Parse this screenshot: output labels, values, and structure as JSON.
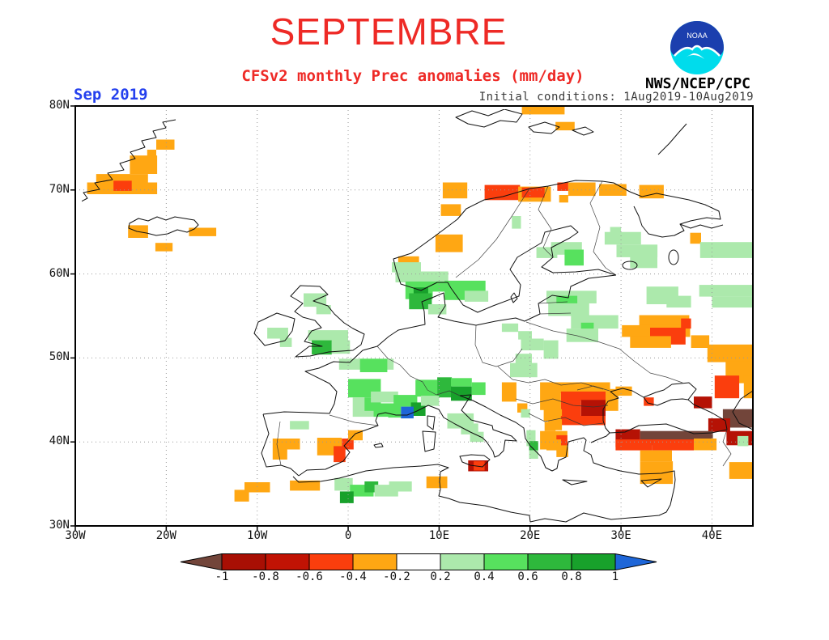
{
  "header": {
    "title": "SEPTEMBRE",
    "subtitle": "CFSv2 monthly Prec anomalies (mm/day)",
    "agency": "NWS/NCEP/CPC",
    "logo_label": "NOAA"
  },
  "map": {
    "date_label": "Sep 2019",
    "init_label": "Initial conditions: 1Aug2019-10Aug2019",
    "lat_ticks": [
      "80N",
      "70N",
      "60N",
      "50N",
      "40N",
      "30N"
    ],
    "lon_ticks": [
      "30W",
      "20W",
      "10W",
      "0",
      "10E",
      "20E",
      "30E",
      "40E"
    ],
    "lat_values": [
      80,
      70,
      60,
      50,
      40,
      30
    ],
    "lon_values": [
      -30,
      -20,
      -10,
      0,
      10,
      20,
      30,
      40
    ]
  },
  "colorbar": {
    "labels": [
      "-1",
      "-0.8",
      "-0.6",
      "-0.4",
      "-0.2",
      "0.2",
      "0.4",
      "0.6",
      "0.8",
      "1"
    ],
    "segment_colors": [
      "#a80f04",
      "#c11304",
      "#fb3e0d",
      "#ffa713",
      "#ffffff",
      "#ace9ac",
      "#57e15e",
      "#2eb83c",
      "#18a12b"
    ],
    "left_arrow_color": "#72453a",
    "right_arrow_color": "#1e66d8"
  },
  "chart_data": {
    "type": "heatmap",
    "title": "CFSv2 monthly precipitation anomaly forecast for September 2019",
    "units": "mm/day",
    "lon_range": [
      -30,
      44.5
    ],
    "lat_range": [
      30,
      80
    ],
    "legend_values": [
      -1,
      -0.8,
      -0.6,
      -0.4,
      -0.2,
      0.2,
      0.4,
      0.6,
      0.8,
      1
    ],
    "palette": {
      "brn": "#72453a",
      "dr": "#b51205",
      "r": "#fb3e0d",
      "o": "#ffa713",
      "lg": "#ace9ac",
      "g": "#57e15e",
      "mg": "#2eb83c",
      "dg": "#18a12b",
      "b": "#1e66d8"
    },
    "cells": [
      [
        -21.1,
        76,
        2,
        1.2,
        "o"
      ],
      [
        -22.1,
        74.8,
        1,
        1.2,
        "o"
      ],
      [
        -24,
        74.1,
        3,
        2.2,
        "o"
      ],
      [
        -27.7,
        71.9,
        5.7,
        1.3,
        "o"
      ],
      [
        -28.7,
        70.9,
        7.7,
        1.4,
        "o"
      ],
      [
        -25.8,
        71.1,
        2,
        1.2,
        "r"
      ],
      [
        -24.2,
        65.8,
        2.2,
        1.5,
        "o"
      ],
      [
        -17.5,
        65.5,
        3,
        1,
        "o"
      ],
      [
        -21.2,
        63.7,
        1.9,
        1,
        "o"
      ],
      [
        19.1,
        80,
        4.7,
        1,
        "o"
      ],
      [
        22.8,
        78.1,
        2.1,
        1,
        "o"
      ],
      [
        10.4,
        70.9,
        2.7,
        1.9,
        "o"
      ],
      [
        15,
        70.6,
        3.9,
        1.8,
        "r"
      ],
      [
        18.7,
        70.4,
        3.6,
        1.8,
        "o"
      ],
      [
        19.1,
        70.3,
        2.5,
        1.2,
        "r"
      ],
      [
        23,
        70.9,
        1.2,
        1,
        "r"
      ],
      [
        24.2,
        70.9,
        3,
        1.6,
        "o"
      ],
      [
        27.6,
        70.7,
        3,
        1.4,
        "o"
      ],
      [
        32,
        70.6,
        2.7,
        1.6,
        "o"
      ],
      [
        23.2,
        69.4,
        1,
        0.9,
        "o"
      ],
      [
        10.2,
        68.3,
        2.2,
        1.4,
        "o"
      ],
      [
        9.6,
        64.7,
        3,
        2.1,
        "o"
      ],
      [
        5.5,
        62.1,
        2.3,
        1.4,
        "o"
      ],
      [
        37.6,
        64.9,
        1.2,
        1.3,
        "o"
      ],
      [
        4.8,
        61.4,
        3.2,
        1.2,
        "lg"
      ],
      [
        5.2,
        60.3,
        5.8,
        1.3,
        "lg"
      ],
      [
        6.3,
        59.1,
        3,
        2.1,
        "g"
      ],
      [
        7.2,
        58.4,
        1.6,
        1.3,
        "dg"
      ],
      [
        9.3,
        59.1,
        3.6,
        1.2,
        "g"
      ],
      [
        10.6,
        59.2,
        4.5,
        2.3,
        "g"
      ],
      [
        12.8,
        58,
        2.6,
        1.3,
        "lg"
      ],
      [
        6.7,
        57.7,
        2.5,
        1.9,
        "mg"
      ],
      [
        8.8,
        56.4,
        2,
        1.2,
        "lg"
      ],
      [
        18,
        66.9,
        1,
        1.5,
        "lg"
      ],
      [
        22.3,
        63.8,
        3.4,
        1.5,
        "lg"
      ],
      [
        23.8,
        62.9,
        2.1,
        1.9,
        "g"
      ],
      [
        20.7,
        63.2,
        2.3,
        1.3,
        "lg"
      ],
      [
        28.2,
        65,
        4,
        1.5,
        "lg"
      ],
      [
        29.5,
        63.5,
        4.5,
        1.5,
        "lg"
      ],
      [
        31,
        62.1,
        3,
        1.4,
        "lg"
      ],
      [
        28.8,
        65.6,
        1.2,
        1.2,
        "lg"
      ],
      [
        38.7,
        63.8,
        5.8,
        1.9,
        "lg"
      ],
      [
        38.6,
        58.7,
        6,
        1.4,
        "lg"
      ],
      [
        40,
        57.3,
        4.5,
        1.3,
        "lg"
      ],
      [
        32.8,
        58.5,
        3.5,
        2.1,
        "lg"
      ],
      [
        35,
        57.4,
        2.7,
        1.4,
        "lg"
      ],
      [
        21.8,
        58,
        5.5,
        1.5,
        "lg"
      ],
      [
        22.9,
        57.4,
        2.3,
        1.4,
        "g"
      ],
      [
        22,
        56.5,
        4.5,
        1.5,
        "lg"
      ],
      [
        24.5,
        55.1,
        5.2,
        1.6,
        "lg"
      ],
      [
        25.6,
        54.2,
        1.4,
        1.3,
        "g"
      ],
      [
        24,
        53.5,
        3.5,
        1.6,
        "lg"
      ],
      [
        21.5,
        52.1,
        1.6,
        2.2,
        "lg"
      ],
      [
        18.7,
        53.2,
        1.5,
        1,
        "lg"
      ],
      [
        16.9,
        54.1,
        1.8,
        1,
        "lg"
      ],
      [
        18.4,
        50.5,
        1.8,
        2.1,
        "lg"
      ],
      [
        19,
        52.3,
        2.5,
        1.4,
        "lg"
      ],
      [
        -4.9,
        57.7,
        2.5,
        1.6,
        "lg"
      ],
      [
        -3.5,
        56.3,
        1.6,
        1.1,
        "lg"
      ],
      [
        -4.4,
        53.3,
        4.4,
        1.3,
        "lg"
      ],
      [
        -4,
        52.1,
        2.2,
        1.7,
        "mg"
      ],
      [
        -1.8,
        52.1,
        2,
        1.6,
        "lg"
      ],
      [
        -8.9,
        53.6,
        2.3,
        1.3,
        "lg"
      ],
      [
        -7.5,
        52.4,
        1.3,
        1.1,
        "lg"
      ],
      [
        -1,
        49.9,
        6,
        1.3,
        "lg"
      ],
      [
        1.3,
        49.9,
        3,
        1.6,
        "g"
      ],
      [
        0,
        47.5,
        3.6,
        2.2,
        "g"
      ],
      [
        0.5,
        45.3,
        3,
        2.3,
        "lg"
      ],
      [
        1.8,
        45.3,
        1.8,
        1.6,
        "g"
      ],
      [
        2.8,
        44.6,
        2.6,
        1.6,
        "g"
      ],
      [
        2.5,
        46,
        3,
        1.3,
        "lg"
      ],
      [
        7.4,
        47.4,
        2.4,
        2,
        "g"
      ],
      [
        9.8,
        47.7,
        1.6,
        2.4,
        "mg"
      ],
      [
        11.3,
        47.6,
        2.3,
        1,
        "g"
      ],
      [
        11.3,
        46.6,
        2.3,
        1.7,
        "dg"
      ],
      [
        13.6,
        47.1,
        1.5,
        1.5,
        "g"
      ],
      [
        5,
        45.6,
        2.6,
        1.4,
        "g"
      ],
      [
        6.9,
        44.7,
        1.6,
        1.6,
        "dg"
      ],
      [
        5.8,
        44.2,
        1.4,
        1.4,
        "b"
      ],
      [
        4.4,
        44.3,
        1.4,
        1.4,
        "g"
      ],
      [
        8,
        45.5,
        2,
        1.2,
        "lg"
      ],
      [
        10.9,
        43.4,
        2.9,
        1.8,
        "lg"
      ],
      [
        12.4,
        42.2,
        1.9,
        1.3,
        "lg"
      ],
      [
        13.4,
        41.2,
        1.5,
        1.2,
        "lg"
      ],
      [
        17.8,
        49.4,
        3,
        1.7,
        "lg"
      ],
      [
        -6.4,
        42.5,
        2.1,
        1,
        "lg"
      ],
      [
        -8.3,
        40.4,
        3,
        1.3,
        "o"
      ],
      [
        -8.3,
        39.1,
        1.6,
        1.2,
        "o"
      ],
      [
        -3.4,
        40.5,
        2.7,
        2.1,
        "o"
      ],
      [
        -0.7,
        40.4,
        1.3,
        1.3,
        "r"
      ],
      [
        -1.6,
        39.5,
        1.3,
        1.9,
        "r"
      ],
      [
        0,
        41.4,
        1.6,
        1.2,
        "o"
      ],
      [
        -11.4,
        35.2,
        2.8,
        1.2,
        "o"
      ],
      [
        -6.4,
        35.4,
        3.3,
        1.2,
        "o"
      ],
      [
        -12.5,
        34.3,
        1.6,
        1.4,
        "o"
      ],
      [
        -1.5,
        35.7,
        2,
        1.5,
        "lg"
      ],
      [
        0.2,
        34.9,
        2.6,
        1.4,
        "g"
      ],
      [
        -0.9,
        34.1,
        1.5,
        1.4,
        "dg"
      ],
      [
        1.8,
        35.3,
        1.5,
        1.3,
        "mg"
      ],
      [
        2.9,
        34.9,
        2.6,
        1.4,
        "lg"
      ],
      [
        4.5,
        35.3,
        2.5,
        1.2,
        "lg"
      ],
      [
        8.6,
        35.9,
        2.3,
        1.4,
        "o"
      ],
      [
        13.2,
        37.8,
        2.2,
        1.3,
        "dr"
      ],
      [
        13.8,
        37.7,
        1.2,
        1.1,
        "r"
      ],
      [
        16.9,
        47.1,
        1.6,
        2.3,
        "o"
      ],
      [
        18.6,
        44.6,
        1.1,
        1.1,
        "o"
      ],
      [
        19,
        43.9,
        1,
        1,
        "lg"
      ],
      [
        21.1,
        47.1,
        7.7,
        1.3,
        "o"
      ],
      [
        23.4,
        46,
        5.1,
        1.1,
        "r"
      ],
      [
        21.1,
        45.8,
        2.3,
        2,
        "o"
      ],
      [
        25.6,
        45,
        2.7,
        2,
        "dr"
      ],
      [
        23.4,
        45,
        2.2,
        2,
        "r"
      ],
      [
        21.5,
        43.9,
        2,
        1.4,
        "o"
      ],
      [
        23.4,
        43.1,
        4.9,
        1.1,
        "r"
      ],
      [
        22,
        42.7,
        1.5,
        1.3,
        "o"
      ],
      [
        28.3,
        46.3,
        1.4,
        2.6,
        "o"
      ],
      [
        21.6,
        42.4,
        1.2,
        1.1,
        "o"
      ],
      [
        21.1,
        41.3,
        3,
        2.2,
        "o"
      ],
      [
        22.9,
        40.8,
        1.2,
        1.2,
        "r"
      ],
      [
        19.6,
        41.4,
        1,
        1.9,
        "lg"
      ],
      [
        19.9,
        40.1,
        1,
        1.1,
        "mg"
      ],
      [
        19.9,
        39,
        1,
        1,
        "lg"
      ],
      [
        21.8,
        40.3,
        1.6,
        1.3,
        "o"
      ],
      [
        22.9,
        39.4,
        1.3,
        1.2,
        "o"
      ],
      [
        32,
        55.1,
        5.5,
        1.3,
        "o"
      ],
      [
        30.1,
        53.9,
        7.5,
        1.4,
        "o"
      ],
      [
        33.2,
        53.6,
        3.9,
        2,
        "r"
      ],
      [
        36.6,
        54.7,
        1.1,
        1.2,
        "r"
      ],
      [
        31,
        52.6,
        4.5,
        1.4,
        "o"
      ],
      [
        37.7,
        52.7,
        2,
        1.5,
        "o"
      ],
      [
        39.5,
        51.6,
        5,
        2.1,
        "o"
      ],
      [
        41.5,
        49.6,
        3.2,
        2.6,
        "o"
      ],
      [
        40.3,
        47.9,
        2.7,
        2.7,
        "r"
      ],
      [
        43.5,
        47.9,
        1,
        2.7,
        "o"
      ],
      [
        29.4,
        46.6,
        1.8,
        1.1,
        "o"
      ],
      [
        32.5,
        45.3,
        1.1,
        1,
        "r"
      ],
      [
        38,
        45.4,
        2,
        1.4,
        "dr"
      ],
      [
        41.2,
        43.9,
        3.3,
        2.2,
        "brn"
      ],
      [
        39.6,
        42.8,
        2.4,
        1.6,
        "dr"
      ],
      [
        29.4,
        41.5,
        2.7,
        2.1,
        "dr"
      ],
      [
        32.1,
        41.3,
        8,
        1.7,
        "brn"
      ],
      [
        41.6,
        41.3,
        2.9,
        1.7,
        "dr"
      ],
      [
        29.4,
        40.3,
        4,
        1.3,
        "r"
      ],
      [
        33.4,
        40.3,
        4.6,
        1.3,
        "r"
      ],
      [
        38,
        40.4,
        2.5,
        1.4,
        "o"
      ],
      [
        32.1,
        39,
        3.5,
        1.3,
        "o"
      ],
      [
        32.1,
        37.7,
        3.6,
        2.7,
        "o"
      ],
      [
        42.8,
        40.7,
        1.2,
        1.2,
        "lg"
      ],
      [
        41.9,
        37.6,
        2.6,
        2,
        "o"
      ]
    ]
  }
}
